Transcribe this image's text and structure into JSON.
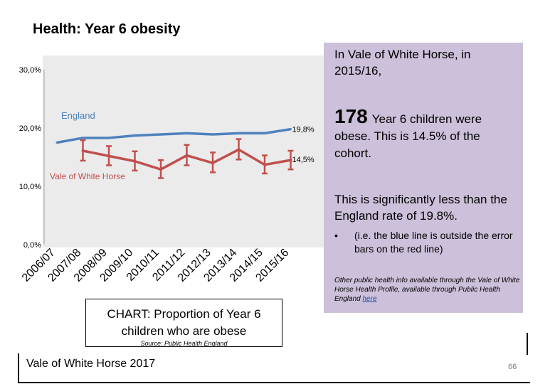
{
  "page": {
    "title": "Health: Year 6 obesity",
    "footer": "Vale of White Horse 2017",
    "page_number": "66"
  },
  "chart_data": {
    "type": "line",
    "title": "CHART: Proportion of Year 6 children who are obese",
    "source": "Source: Public Health England",
    "categories": [
      "2006/07",
      "2007/08",
      "2008/09",
      "2009/10",
      "2010/11",
      "2011/12",
      "2012/13",
      "2013/14",
      "2014/15",
      "2015/16"
    ],
    "yticks": [
      "0,0%",
      "10,0%",
      "20,0%",
      "30,0%"
    ],
    "ylim": [
      0,
      30
    ],
    "grid": false,
    "series": [
      {
        "name": "England",
        "color": "#4f81bd",
        "values": [
          17.5,
          18.3,
          18.3,
          18.7,
          18.9,
          19.1,
          18.9,
          19.1,
          19.1,
          19.8
        ],
        "end_label": "19,8%"
      },
      {
        "name": "Vale of White Horse",
        "color": "#c0504d",
        "values": [
          null,
          16.1,
          15.2,
          14.3,
          12.9,
          15.3,
          14.0,
          16.3,
          13.7,
          14.5
        ],
        "ci_low": [
          null,
          14.4,
          13.6,
          12.7,
          11.4,
          13.6,
          12.4,
          14.6,
          12.2,
          12.9
        ],
        "ci_high": [
          null,
          17.9,
          16.9,
          16.0,
          14.5,
          17.1,
          15.8,
          18.1,
          15.3,
          16.1
        ],
        "end_label": "14,5%"
      }
    ]
  },
  "panel": {
    "intro": "In Vale of White Horse, in 2015/16,",
    "count": "178",
    "count_text": "Year 6 children were obese. This is 14.5% of the cohort.",
    "significance": "This is significantly less than the England rate of 19.8%.",
    "bullet_marker": "•",
    "bullet": "(i.e. the blue line is outside the error bars on the red line)",
    "note": "Other public health info available through the Vale of White Horse Health Profile, available through Public Health England",
    "note_link": "here"
  }
}
